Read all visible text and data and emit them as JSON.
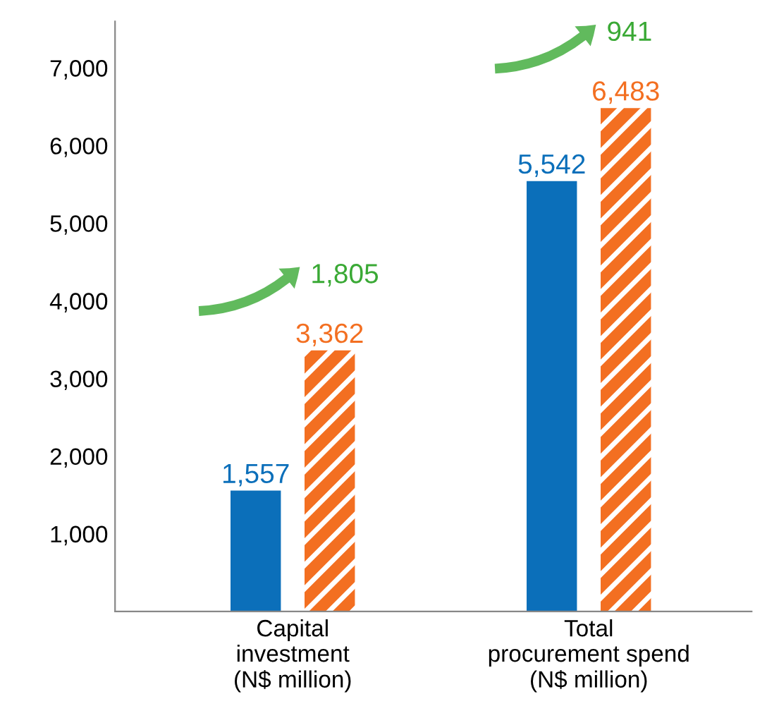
{
  "chart_data": {
    "type": "bar",
    "categories": [
      "Capital\ninvestment\n(N$ million)",
      "Total\nprocurement spend\n(N$ million)"
    ],
    "series": [
      {
        "color": "#0b6fba",
        "values": [
          1557,
          5542
        ],
        "value_labels": [
          "1,557",
          "5,542"
        ]
      },
      {
        "color": "#f36f21",
        "values": [
          3362,
          6483
        ],
        "value_labels": [
          "3,362",
          "6,483"
        ]
      }
    ],
    "ylim": [
      0,
      7600
    ],
    "yticks": [
      {
        "value": 1000,
        "label": "1,000"
      },
      {
        "value": 2000,
        "label": "2,000"
      },
      {
        "value": 3000,
        "label": "3,000"
      },
      {
        "value": 4000,
        "label": "4,000"
      },
      {
        "value": 5000,
        "label": "5,000"
      },
      {
        "value": 6000,
        "label": "6,000"
      },
      {
        "value": 7000,
        "label": "7,000"
      }
    ],
    "annotations": [
      "1,805",
      "941"
    ],
    "grid": false,
    "legend": false
  }
}
